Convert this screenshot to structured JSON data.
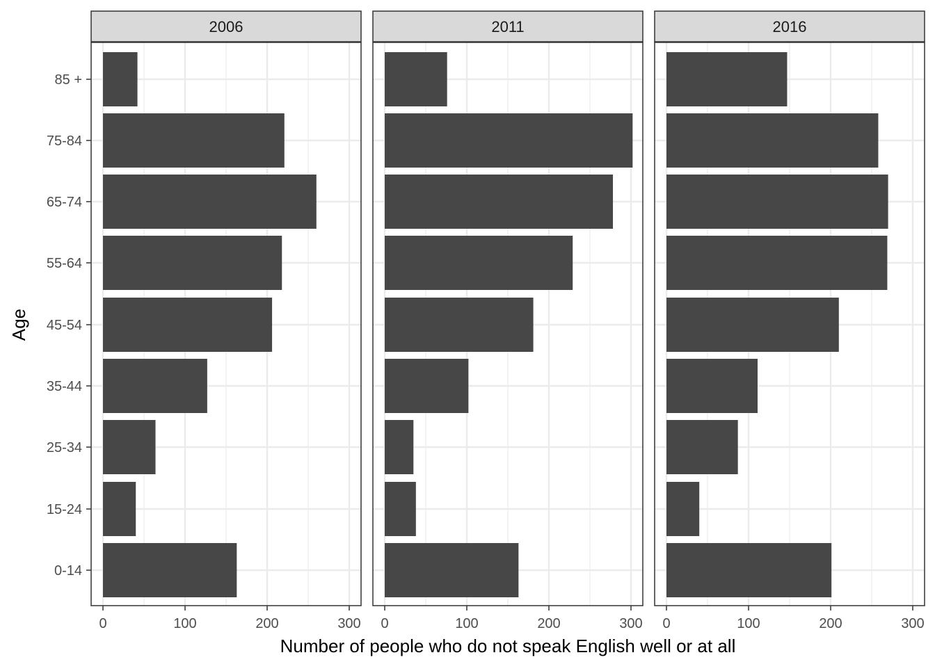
{
  "chart_data": {
    "type": "bar",
    "orientation": "horizontal",
    "facet_labels": [
      "2006",
      "2011",
      "2016"
    ],
    "categories": [
      "0-14",
      "15-24",
      "25-34",
      "35-44",
      "45-54",
      "55-64",
      "65-74",
      "75-84",
      "85 +"
    ],
    "series": [
      {
        "facet": "2006",
        "values": [
          163,
          40,
          64,
          127,
          206,
          218,
          260,
          221,
          42
        ]
      },
      {
        "facet": "2011",
        "values": [
          163,
          38,
          35,
          102,
          181,
          229,
          278,
          302,
          76
        ]
      },
      {
        "facet": "2016",
        "values": [
          201,
          40,
          87,
          111,
          210,
          269,
          270,
          258,
          147
        ]
      }
    ],
    "x_ticks": [
      "0",
      "100",
      "200",
      "300"
    ],
    "xlabel": "Number of people who do not speak English well or at all",
    "ylabel": "Age",
    "xlim": [
      -15,
      315
    ],
    "grid": true,
    "bar_color": "#474747",
    "strip_fill": "#d9d9d9",
    "grid_color": "#ebebeb"
  }
}
